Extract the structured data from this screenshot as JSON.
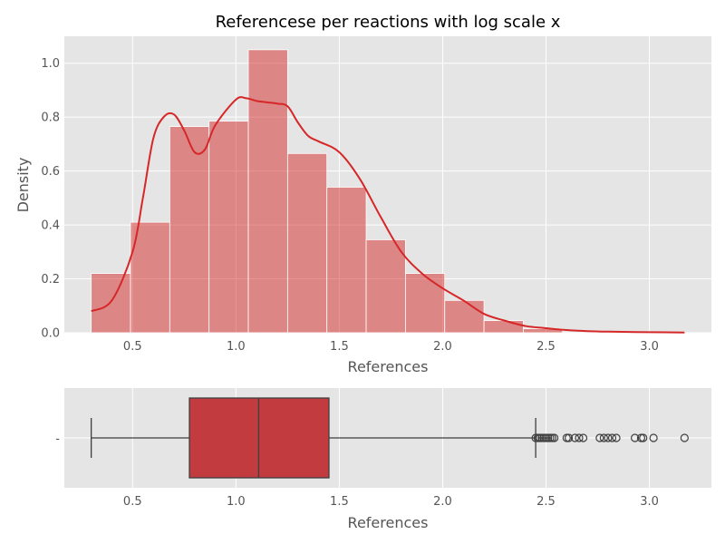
{
  "chart_data": [
    {
      "type": "bar",
      "title": "Referencese per reactions with log scale x",
      "xlabel": "References",
      "ylabel": "Density",
      "xlim": [
        0.17,
        3.3
      ],
      "ylim": [
        0,
        1.1
      ],
      "grid": true,
      "xticks": [
        "0.5",
        "1.0",
        "1.5",
        "2.0",
        "2.5",
        "3.0"
      ],
      "yticks": [
        "0.0",
        "0.2",
        "0.4",
        "0.6",
        "0.8",
        "1.0"
      ],
      "histogram": {
        "bin_edges": [
          0.3,
          0.49,
          0.68,
          0.87,
          1.06,
          1.25,
          1.44,
          1.63,
          1.82,
          2.01,
          2.2,
          2.39,
          2.58
        ],
        "densities": [
          0.22,
          0.41,
          0.765,
          0.785,
          1.05,
          0.665,
          0.54,
          0.345,
          0.22,
          0.12,
          0.045,
          0.015
        ],
        "color": "#d62728"
      },
      "kde": {
        "x": [
          0.3,
          0.4,
          0.5,
          0.55,
          0.6,
          0.65,
          0.7,
          0.75,
          0.8,
          0.85,
          0.9,
          1.0,
          1.05,
          1.1,
          1.15,
          1.2,
          1.25,
          1.3,
          1.35,
          1.4,
          1.5,
          1.6,
          1.7,
          1.8,
          1.9,
          2.0,
          2.1,
          2.2,
          2.3,
          2.4,
          2.5,
          2.6,
          2.7,
          2.8,
          2.9,
          3.0,
          3.17
        ],
        "y": [
          0.08,
          0.12,
          0.3,
          0.5,
          0.72,
          0.8,
          0.81,
          0.75,
          0.67,
          0.68,
          0.77,
          0.865,
          0.87,
          0.86,
          0.855,
          0.85,
          0.84,
          0.78,
          0.73,
          0.71,
          0.67,
          0.57,
          0.43,
          0.3,
          0.22,
          0.165,
          0.12,
          0.07,
          0.045,
          0.025,
          0.017,
          0.01,
          0.006,
          0.004,
          0.003,
          0.002,
          0.001
        ],
        "color": "#d62728"
      }
    },
    {
      "type": "box",
      "xlabel": "References",
      "ytick": "-",
      "xlim": [
        0.17,
        3.3
      ],
      "xticks": [
        "0.5",
        "1.0",
        "1.5",
        "2.0",
        "2.5",
        "3.0"
      ],
      "grid": true,
      "box": {
        "whisker_low": 0.3,
        "q1": 0.775,
        "median": 1.11,
        "q3": 1.45,
        "whisker_high": 2.45,
        "color": "#c23b3e"
      },
      "outliers": [
        2.45,
        2.46,
        2.47,
        2.48,
        2.49,
        2.5,
        2.51,
        2.52,
        2.53,
        2.54,
        2.6,
        2.61,
        2.64,
        2.66,
        2.68,
        2.76,
        2.78,
        2.8,
        2.82,
        2.84,
        2.93,
        2.96,
        2.97,
        3.02,
        3.17
      ]
    }
  ]
}
